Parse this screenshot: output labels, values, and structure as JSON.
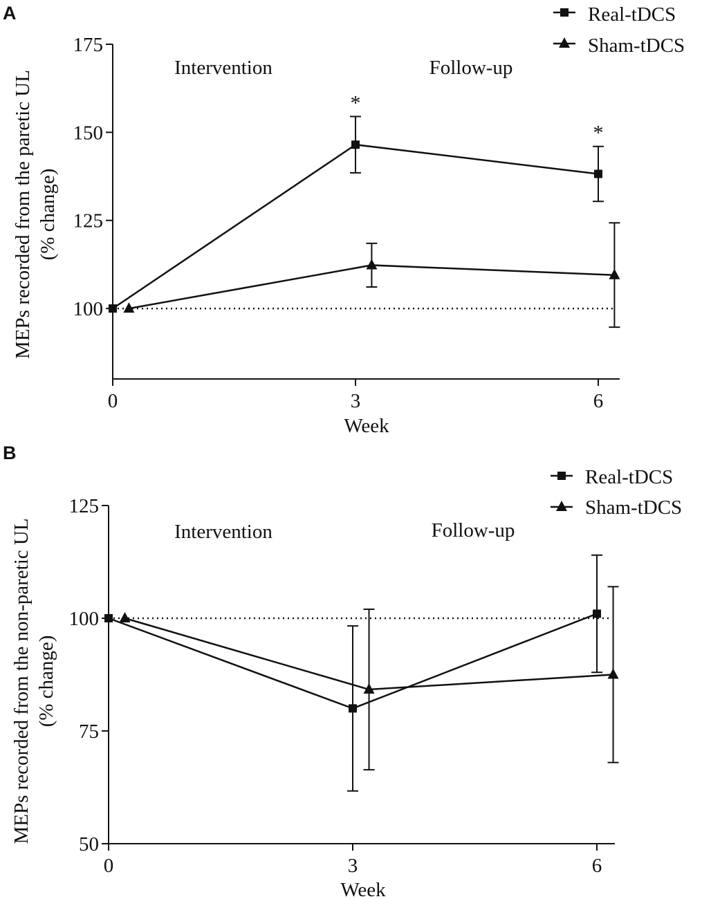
{
  "figure": {
    "colors": {
      "ink": "#111111",
      "background": "#ffffff"
    }
  },
  "chart_data": [
    {
      "panel": "A",
      "type": "line",
      "xlabel": "Week",
      "ylabel_line1": "MEPs recorded from the paretic UL",
      "ylabel_line2": "(% change)",
      "xticks": [
        0,
        3,
        6
      ],
      "yticks": [
        100,
        125,
        150,
        175
      ],
      "ylim": [
        80,
        175
      ],
      "xlim": [
        0,
        6.25
      ],
      "reference_line": 100,
      "phase_labels": {
        "left": "Intervention",
        "right": "Follow-up"
      },
      "legend": {
        "position": "top-right",
        "entries": [
          "Real-tDCS",
          "Sham-tDCS"
        ]
      },
      "series": [
        {
          "name": "Real-tDCS",
          "marker": "square",
          "x": [
            0,
            3,
            6
          ],
          "values": [
            100,
            146.5,
            138.2
          ],
          "error": [
            0,
            8,
            7.8
          ]
        },
        {
          "name": "Sham-tDCS",
          "marker": "triangle",
          "x": [
            0,
            3,
            6
          ],
          "values": [
            100,
            112.3,
            109.5
          ],
          "error": [
            0,
            6.2,
            14.8
          ]
        }
      ],
      "annotations": [
        {
          "text": "*",
          "x": 3,
          "y": 154.5
        },
        {
          "text": "*",
          "x": 6,
          "y": 146
        }
      ]
    },
    {
      "panel": "B",
      "type": "line",
      "xlabel": "Week",
      "ylabel_line1": "MEPs recorded from the non-paretic UL",
      "ylabel_line2": "(% change)",
      "xticks": [
        0,
        3,
        6
      ],
      "yticks": [
        50,
        75,
        100,
        125
      ],
      "ylim": [
        50,
        125
      ],
      "xlim": [
        0,
        6.25
      ],
      "reference_line": 100,
      "phase_labels": {
        "left": "Intervention",
        "right": "Follow-up"
      },
      "legend": {
        "position": "top-right",
        "entries": [
          "Real-tDCS",
          "Sham-tDCS"
        ]
      },
      "series": [
        {
          "name": "Real-tDCS",
          "marker": "square",
          "x": [
            0,
            3,
            6
          ],
          "values": [
            100,
            80,
            101
          ],
          "error": [
            0,
            18.3,
            13
          ]
        },
        {
          "name": "Sham-tDCS",
          "marker": "triangle",
          "x": [
            0,
            3,
            6
          ],
          "values": [
            100,
            84.2,
            87.5
          ],
          "error": [
            0,
            17.8,
            19.5
          ]
        }
      ],
      "annotations": []
    }
  ]
}
